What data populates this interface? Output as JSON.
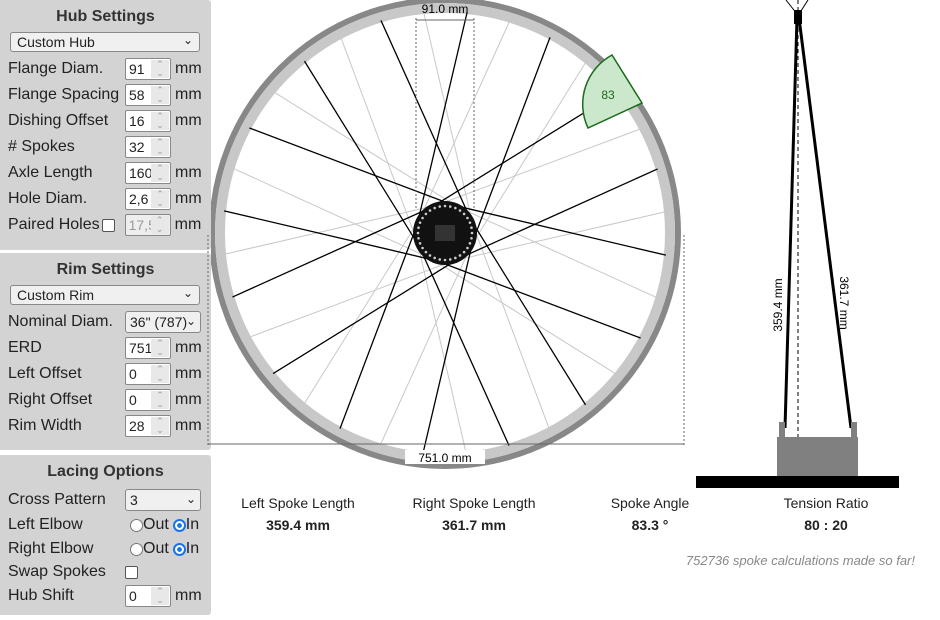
{
  "hub": {
    "title": "Hub Settings",
    "preset": "Custom Hub",
    "fields": [
      {
        "label": "Flange Diam.",
        "value": "91",
        "unit": "mm"
      },
      {
        "label": "Flange Spacing",
        "value": "58",
        "unit": "mm"
      },
      {
        "label": "Dishing Offset",
        "value": "16",
        "unit": "mm"
      },
      {
        "label": "# Spokes",
        "value": "32",
        "unit": ""
      },
      {
        "label": "Axle Length",
        "value": "160",
        "unit": "mm"
      },
      {
        "label": "Hole Diam.",
        "value": "2,6",
        "unit": "mm"
      }
    ],
    "paired": {
      "label": "Paired Holes",
      "checked": false,
      "value": "17,5",
      "unit": "mm"
    }
  },
  "rim": {
    "title": "Rim Settings",
    "preset": "Custom Rim",
    "nominal": {
      "label": "Nominal Diam.",
      "value": "36\" (787)"
    },
    "fields": [
      {
        "label": "ERD",
        "value": "751",
        "unit": "mm"
      },
      {
        "label": "Left Offset",
        "value": "0",
        "unit": "mm"
      },
      {
        "label": "Right Offset",
        "value": "0",
        "unit": "mm"
      },
      {
        "label": "Rim Width",
        "value": "28",
        "unit": "mm"
      }
    ]
  },
  "lacing": {
    "title": "Lacing Options",
    "cross": {
      "label": "Cross Pattern",
      "value": "3"
    },
    "left_elbow": {
      "label": "Left Elbow",
      "selected": "In"
    },
    "right_elbow": {
      "label": "Right Elbow",
      "selected": "In"
    },
    "out_label": "Out",
    "in_label": "In",
    "swap": {
      "label": "Swap Spokes",
      "checked": false
    },
    "hub_shift": {
      "label": "Hub Shift",
      "value": "0",
      "unit": "mm"
    }
  },
  "diagram": {
    "flange_label": "91.0 mm",
    "erd_label": "751.0 mm",
    "angle_label": "83",
    "left_len_label": "359.4 mm",
    "right_len_label": "361.7 mm"
  },
  "results": [
    {
      "label": "Left Spoke Length",
      "value": "359.4 mm"
    },
    {
      "label": "Right Spoke Length",
      "value": "361.7 mm"
    },
    {
      "label": "Spoke Angle",
      "value": "83.3 °"
    },
    {
      "label": "Tension Ratio",
      "value": "80 : 20"
    }
  ],
  "footer": "752736 spoke calculations made so far!",
  "colors": {
    "panel": "#d3d3d3",
    "left_spoke": "#000000",
    "right_spoke": "#c8c8c8",
    "rim": "#888888",
    "angle_fill": "#cce8cc",
    "angle_stroke": "#1a6b1a",
    "radio": "#1a73e8"
  }
}
